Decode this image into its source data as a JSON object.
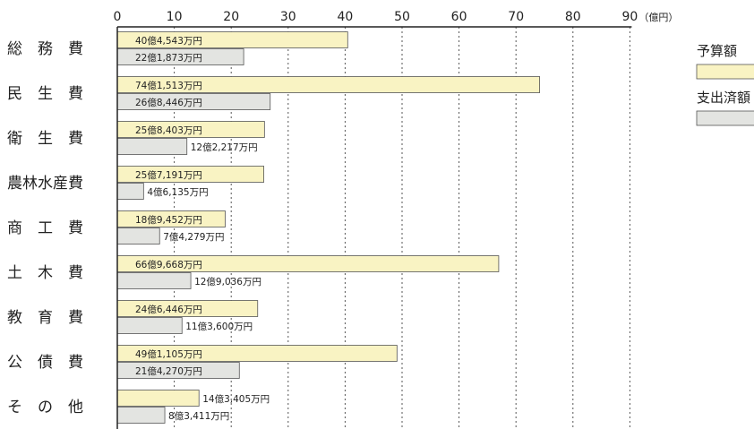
{
  "chart_data": {
    "type": "bar",
    "orientation": "horizontal",
    "unit": "（億円）",
    "xlim": [
      0,
      90
    ],
    "xticks": [
      "0",
      "10",
      "20",
      "30",
      "40",
      "50",
      "60",
      "70",
      "80",
      "90"
    ],
    "grid": true,
    "legend_position": "right",
    "categories": [
      "総　務　費",
      "民　生　費",
      "衛　生　費",
      "農林水産費",
      "商　工　費",
      "土　木　費",
      "教　育　費",
      "公　債　費",
      "そ　の　他"
    ],
    "series": [
      {
        "name": "予算額",
        "color": "#f9f3c3",
        "values": [
          40.4543,
          74.1513,
          25.8403,
          25.7191,
          18.9452,
          66.9668,
          24.6446,
          49.1105,
          14.3405
        ],
        "labels": [
          "40億4,543万円",
          "74億1,513万円",
          "25億8,403万円",
          "25億7,191万円",
          "18億9,452万円",
          "66億9,668万円",
          "24億6,446万円",
          "49億1,105万円",
          "14億3,405万円"
        ]
      },
      {
        "name": "支出済額",
        "color": "#e3e4e1",
        "values": [
          22.1873,
          26.8446,
          12.2217,
          4.6135,
          7.4279,
          12.9036,
          11.36,
          21.427,
          8.3411
        ],
        "labels": [
          "22億1,873万円",
          "26億8,446万円",
          "12億2,217万円",
          "4億6,135万円",
          "7億4,279万円",
          "12億9,036万円",
          "11億3,600万円",
          "21億4,270万円",
          "8億3,411万円"
        ]
      }
    ]
  }
}
